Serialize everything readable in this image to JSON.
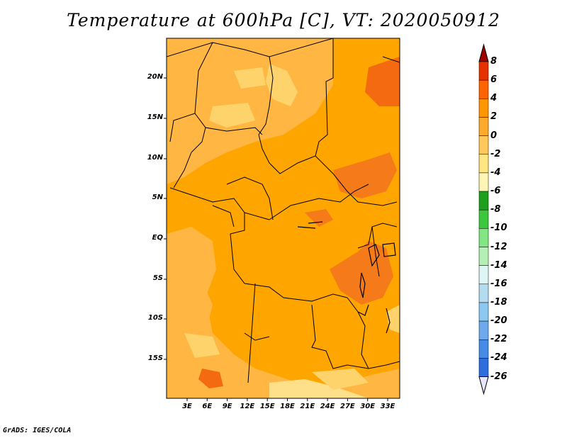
{
  "title": "Temperature at 600hPa [C], VT: 2020050912",
  "credit": "GrADS: IGES/COLA",
  "map": {
    "lat_ticks": [
      "20N",
      "15N",
      "10N",
      "5N",
      "EQ",
      "5S",
      "10S",
      "15S"
    ],
    "lon_ticks": [
      "3E",
      "6E",
      "9E",
      "12E",
      "15E",
      "18E",
      "21E",
      "24E",
      "27E",
      "30E",
      "33E"
    ]
  },
  "colorbar": {
    "labels": [
      "8",
      "6",
      "4",
      "2",
      "0",
      "-2",
      "-4",
      "-6",
      "-8",
      "-10",
      "-12",
      "-14",
      "-16",
      "-18",
      "-20",
      "-22",
      "-24",
      "-26"
    ],
    "colors": [
      "#a00000",
      "#e63200",
      "#ff6400",
      "#ff9600",
      "#ffaa2d",
      "#ffc85a",
      "#ffe682",
      "#fff5b4",
      "#1ea01e",
      "#3cc83c",
      "#82e682",
      "#b4f0b4",
      "#dcf5f5",
      "#b4dcf0",
      "#8cc8f0",
      "#6eaaeb",
      "#468ce6",
      "#2d6edc",
      "#1e50c8",
      "#1432aa",
      "#0a1e8c",
      "#000064"
    ]
  }
}
